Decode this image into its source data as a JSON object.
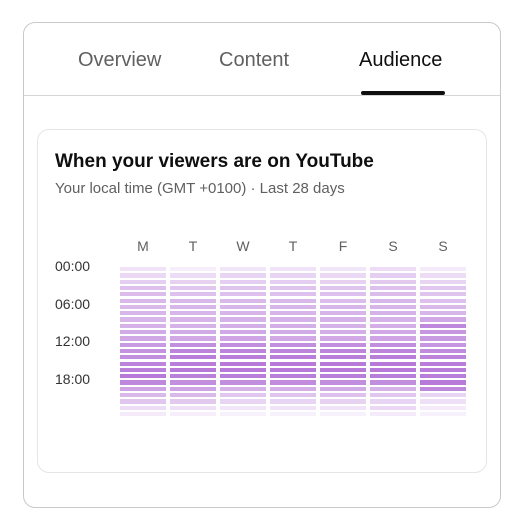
{
  "tabs": [
    {
      "label": "Overview",
      "active": false
    },
    {
      "label": "Content",
      "active": false
    },
    {
      "label": "Audience",
      "active": true
    }
  ],
  "card": {
    "title": "When your viewers are on YouTube",
    "subtitle": "Your local time (GMT +0100) · Last 28 days"
  },
  "heatmap": {
    "days": [
      "M",
      "T",
      "W",
      "T",
      "F",
      "S",
      "S"
    ],
    "hour_labels": [
      "00:00",
      "06:00",
      "12:00",
      "18:00"
    ],
    "rows_per_day": 24,
    "color_rgb": [
      179,
      115,
      214
    ],
    "levels": [
      [
        0.2,
        0.28,
        0.35,
        0.45,
        0.48,
        0.5,
        0.5,
        0.52,
        0.52,
        0.55,
        0.6,
        0.62,
        0.72,
        0.78,
        0.8,
        0.88,
        0.9,
        0.95,
        0.85,
        0.65,
        0.5,
        0.4,
        0.25,
        0.15
      ],
      [
        0.12,
        0.25,
        0.33,
        0.4,
        0.45,
        0.5,
        0.52,
        0.52,
        0.53,
        0.55,
        0.6,
        0.62,
        0.8,
        0.88,
        0.92,
        0.92,
        0.95,
        0.9,
        0.8,
        0.65,
        0.5,
        0.38,
        0.22,
        0.12
      ],
      [
        0.18,
        0.3,
        0.35,
        0.42,
        0.45,
        0.5,
        0.52,
        0.53,
        0.55,
        0.58,
        0.62,
        0.65,
        0.8,
        0.88,
        0.92,
        0.95,
        0.95,
        0.92,
        0.8,
        0.55,
        0.4,
        0.3,
        0.18,
        0.1
      ],
      [
        0.2,
        0.3,
        0.35,
        0.42,
        0.45,
        0.5,
        0.52,
        0.53,
        0.55,
        0.58,
        0.6,
        0.62,
        0.8,
        0.88,
        0.92,
        0.95,
        0.95,
        0.92,
        0.82,
        0.58,
        0.42,
        0.3,
        0.2,
        0.1
      ],
      [
        0.18,
        0.28,
        0.33,
        0.42,
        0.45,
        0.48,
        0.52,
        0.53,
        0.55,
        0.55,
        0.58,
        0.62,
        0.8,
        0.88,
        0.92,
        0.95,
        0.95,
        0.92,
        0.8,
        0.6,
        0.45,
        0.32,
        0.2,
        0.1
      ],
      [
        0.25,
        0.35,
        0.38,
        0.45,
        0.48,
        0.52,
        0.53,
        0.55,
        0.55,
        0.58,
        0.62,
        0.65,
        0.8,
        0.88,
        0.92,
        0.95,
        0.95,
        0.92,
        0.8,
        0.55,
        0.4,
        0.3,
        0.28,
        0.15
      ],
      [
        0.15,
        0.25,
        0.3,
        0.4,
        0.42,
        0.45,
        0.5,
        0.52,
        0.62,
        0.85,
        0.75,
        0.72,
        0.75,
        0.82,
        0.88,
        0.92,
        0.92,
        0.92,
        0.95,
        0.85,
        0.3,
        0.22,
        0.15,
        0.1
      ]
    ]
  }
}
